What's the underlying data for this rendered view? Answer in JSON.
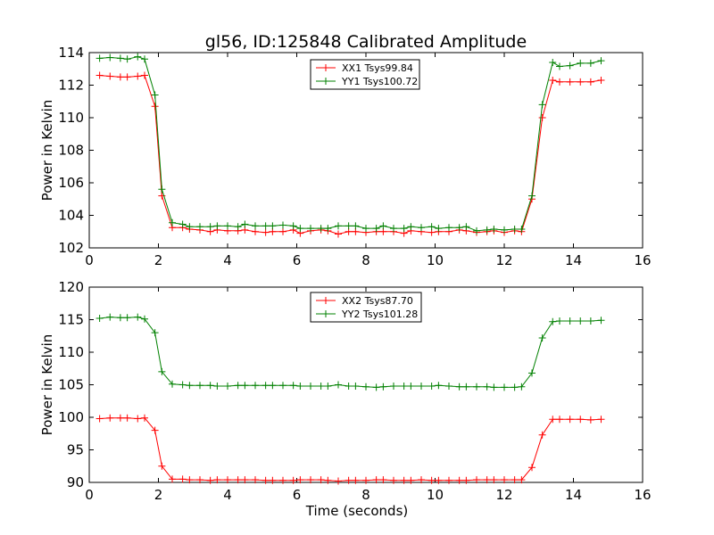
{
  "figure": {
    "title": "gl56, ID:125848 Calibrated Amplitude"
  },
  "chart_data": [
    {
      "type": "line",
      "title": "gl56, ID:125848 Calibrated Amplitude",
      "xlabel": "",
      "ylabel": "Power in Kelvin",
      "xlim": [
        0,
        16
      ],
      "ylim": [
        102,
        114
      ],
      "xticks": [
        "0",
        "2",
        "4",
        "6",
        "8",
        "10",
        "12",
        "14",
        "16"
      ],
      "yticks": [
        "102",
        "104",
        "106",
        "108",
        "110",
        "112",
        "114"
      ],
      "grid": false,
      "legend": "top-center",
      "x": [
        0.3,
        0.6,
        0.9,
        1.1,
        1.4,
        1.6,
        1.9,
        2.1,
        2.4,
        2.7,
        2.9,
        3.2,
        3.5,
        3.7,
        4.0,
        4.3,
        4.5,
        4.8,
        5.1,
        5.3,
        5.6,
        5.9,
        6.1,
        6.4,
        6.7,
        6.9,
        7.2,
        7.5,
        7.7,
        8.0,
        8.3,
        8.5,
        8.8,
        9.1,
        9.3,
        9.6,
        9.9,
        10.1,
        10.4,
        10.7,
        10.9,
        11.2,
        11.5,
        11.7,
        12.0,
        12.3,
        12.5,
        12.8,
        13.1,
        13.4,
        13.6,
        13.9,
        14.2,
        14.5,
        14.8
      ],
      "series": [
        {
          "name": "XX1 Tsys99.84",
          "color": "#ff0000",
          "values": [
            112.6,
            112.55,
            112.5,
            112.5,
            112.55,
            112.6,
            110.7,
            105.2,
            103.25,
            103.25,
            103.15,
            103.1,
            103.0,
            103.1,
            103.05,
            103.05,
            103.1,
            103.0,
            102.95,
            103.0,
            103.0,
            103.1,
            102.9,
            103.05,
            103.1,
            103.05,
            102.85,
            103.0,
            103.0,
            102.95,
            103.0,
            103.0,
            103.0,
            102.9,
            103.05,
            103.0,
            102.95,
            103.0,
            103.0,
            103.1,
            103.05,
            102.95,
            103.0,
            103.05,
            102.95,
            103.05,
            103.0,
            105.0,
            110.0,
            112.3,
            112.2,
            112.2,
            112.2,
            112.2,
            112.3
          ]
        },
        {
          "name": "YY1 Tsys100.72",
          "color": "#008000",
          "values": [
            113.65,
            113.7,
            113.65,
            113.6,
            113.75,
            113.6,
            111.4,
            105.6,
            103.55,
            103.45,
            103.3,
            103.3,
            103.3,
            103.35,
            103.35,
            103.3,
            103.45,
            103.35,
            103.35,
            103.35,
            103.4,
            103.35,
            103.2,
            103.2,
            103.2,
            103.2,
            103.35,
            103.35,
            103.35,
            103.2,
            103.2,
            103.35,
            103.2,
            103.2,
            103.3,
            103.25,
            103.3,
            103.2,
            103.25,
            103.25,
            103.3,
            103.05,
            103.1,
            103.15,
            103.1,
            103.15,
            103.15,
            105.2,
            110.8,
            113.4,
            113.15,
            113.2,
            113.35,
            113.35,
            113.5
          ]
        }
      ]
    },
    {
      "type": "line",
      "title": "",
      "xlabel": "Time (seconds)",
      "ylabel": "Power in Kelvin",
      "xlim": [
        0,
        16
      ],
      "ylim": [
        90,
        120
      ],
      "xticks": [
        "0",
        "2",
        "4",
        "6",
        "8",
        "10",
        "12",
        "14",
        "16"
      ],
      "yticks": [
        "90",
        "95",
        "100",
        "105",
        "110",
        "115",
        "120"
      ],
      "grid": false,
      "legend": "top-center",
      "x": [
        0.3,
        0.6,
        0.9,
        1.1,
        1.4,
        1.6,
        1.9,
        2.1,
        2.4,
        2.7,
        2.9,
        3.2,
        3.5,
        3.7,
        4.0,
        4.3,
        4.5,
        4.8,
        5.1,
        5.3,
        5.6,
        5.9,
        6.1,
        6.4,
        6.7,
        6.9,
        7.2,
        7.5,
        7.7,
        8.0,
        8.3,
        8.5,
        8.8,
        9.1,
        9.3,
        9.6,
        9.9,
        10.1,
        10.4,
        10.7,
        10.9,
        11.2,
        11.5,
        11.7,
        12.0,
        12.3,
        12.5,
        12.8,
        13.1,
        13.4,
        13.6,
        13.9,
        14.2,
        14.5,
        14.8
      ],
      "series": [
        {
          "name": "XX2 Tsys87.70",
          "color": "#ff0000",
          "values": [
            99.8,
            99.9,
            99.9,
            99.9,
            99.8,
            99.9,
            98.0,
            92.5,
            90.5,
            90.5,
            90.4,
            90.4,
            90.3,
            90.4,
            90.4,
            90.4,
            90.4,
            90.4,
            90.3,
            90.3,
            90.3,
            90.3,
            90.4,
            90.4,
            90.4,
            90.3,
            90.2,
            90.3,
            90.3,
            90.3,
            90.4,
            90.4,
            90.3,
            90.3,
            90.3,
            90.4,
            90.3,
            90.3,
            90.3,
            90.3,
            90.3,
            90.4,
            90.4,
            90.4,
            90.4,
            90.4,
            90.4,
            92.3,
            97.3,
            99.7,
            99.7,
            99.7,
            99.7,
            99.6,
            99.7
          ]
        },
        {
          "name": "YY2 Tsys101.28",
          "color": "#008000",
          "values": [
            115.2,
            115.4,
            115.3,
            115.3,
            115.4,
            115.1,
            113.0,
            107.0,
            105.1,
            105.0,
            104.9,
            104.9,
            104.9,
            104.8,
            104.8,
            104.9,
            104.9,
            104.9,
            104.9,
            104.9,
            104.9,
            104.9,
            104.8,
            104.8,
            104.8,
            104.8,
            105.0,
            104.8,
            104.8,
            104.7,
            104.6,
            104.7,
            104.8,
            104.8,
            104.8,
            104.8,
            104.8,
            104.9,
            104.8,
            104.7,
            104.7,
            104.7,
            104.7,
            104.6,
            104.6,
            104.6,
            104.7,
            106.8,
            112.2,
            114.7,
            114.8,
            114.8,
            114.8,
            114.8,
            114.9
          ]
        }
      ]
    }
  ]
}
